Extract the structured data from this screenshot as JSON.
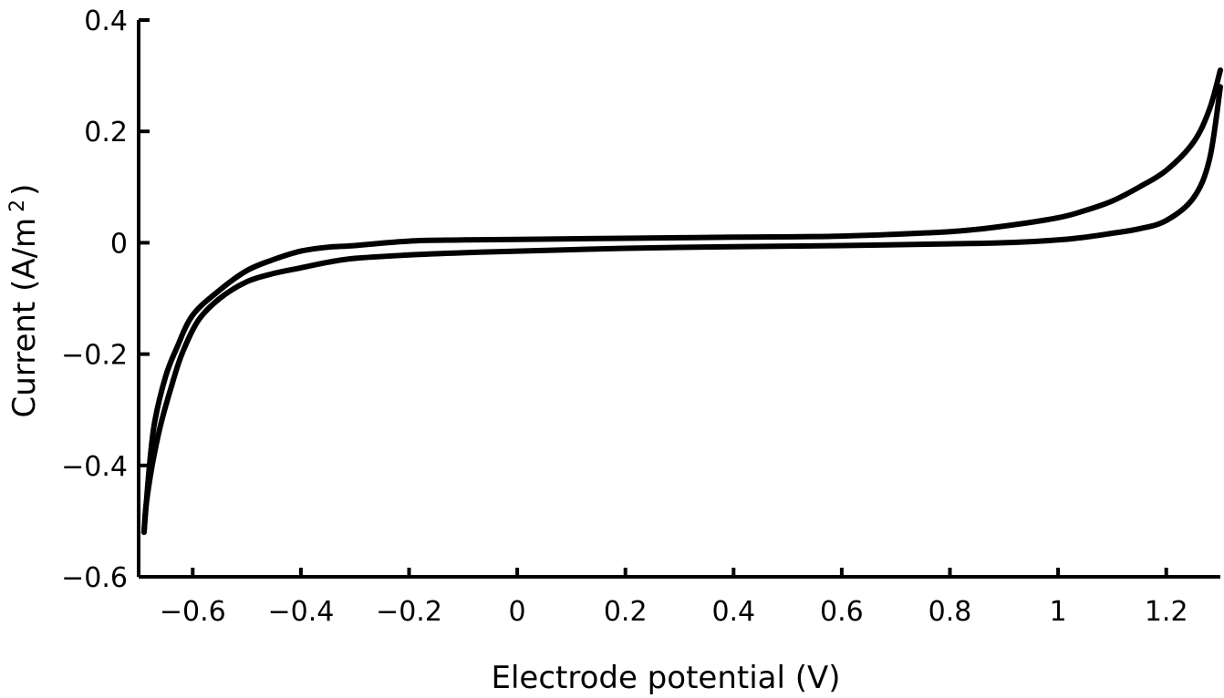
{
  "chart_data": {
    "type": "line",
    "title": "",
    "xlabel": "Electrode potential (V)",
    "ylabel_main": "Current (A/m",
    "ylabel_sup": "2",
    "ylabel_close": ")",
    "xlim": [
      -0.7,
      1.3
    ],
    "ylim": [
      -0.6,
      0.4
    ],
    "x_ticks": [
      -0.6,
      -0.4,
      -0.2,
      0,
      0.2,
      0.4,
      0.6,
      0.8,
      1,
      1.2
    ],
    "x_tick_labels": [
      "−0.6",
      "−0.4",
      "−0.2",
      "0",
      "0.2",
      "0.4",
      "0.6",
      "0.8",
      "1",
      "1.2"
    ],
    "y_ticks": [
      0.4,
      0.2,
      0,
      -0.2,
      -0.4,
      -0.6
    ],
    "y_tick_labels": [
      "0.4",
      "0.2",
      "0",
      "−0.2",
      "−0.4",
      "−0.6"
    ],
    "grid": false,
    "series": [
      {
        "x": [
          -0.69,
          -0.686,
          -0.675,
          -0.66,
          -0.64,
          -0.62,
          -0.59,
          -0.55,
          -0.5,
          -0.45,
          -0.4,
          -0.35,
          -0.3,
          -0.2,
          -0.1,
          0.0,
          0.2,
          0.4,
          0.6,
          0.8,
          0.9,
          1.0,
          1.05,
          1.1,
          1.15,
          1.2,
          1.25,
          1.28,
          1.3
        ],
        "y": [
          -0.52,
          -0.47,
          -0.4,
          -0.33,
          -0.26,
          -0.2,
          -0.14,
          -0.1,
          -0.07,
          -0.055,
          -0.045,
          -0.035,
          -0.028,
          -0.022,
          -0.018,
          -0.015,
          -0.01,
          -0.007,
          -0.005,
          -0.002,
          0.0,
          0.005,
          0.01,
          0.017,
          0.025,
          0.04,
          0.08,
          0.15,
          0.28
        ]
      },
      {
        "x": [
          1.3,
          1.28,
          1.25,
          1.2,
          1.15,
          1.1,
          1.05,
          1.0,
          0.9,
          0.8,
          0.6,
          0.4,
          0.2,
          0.0,
          -0.1,
          -0.2,
          -0.3,
          -0.35,
          -0.4,
          -0.45,
          -0.5,
          -0.55,
          -0.6,
          -0.63,
          -0.65,
          -0.67,
          -0.68,
          -0.69
        ],
        "y": [
          0.31,
          0.24,
          0.18,
          0.13,
          0.1,
          0.075,
          0.058,
          0.045,
          0.03,
          0.02,
          0.012,
          0.01,
          0.008,
          0.006,
          0.005,
          0.003,
          -0.005,
          -0.008,
          -0.015,
          -0.03,
          -0.05,
          -0.085,
          -0.13,
          -0.19,
          -0.24,
          -0.32,
          -0.4,
          -0.52
        ]
      }
    ]
  }
}
